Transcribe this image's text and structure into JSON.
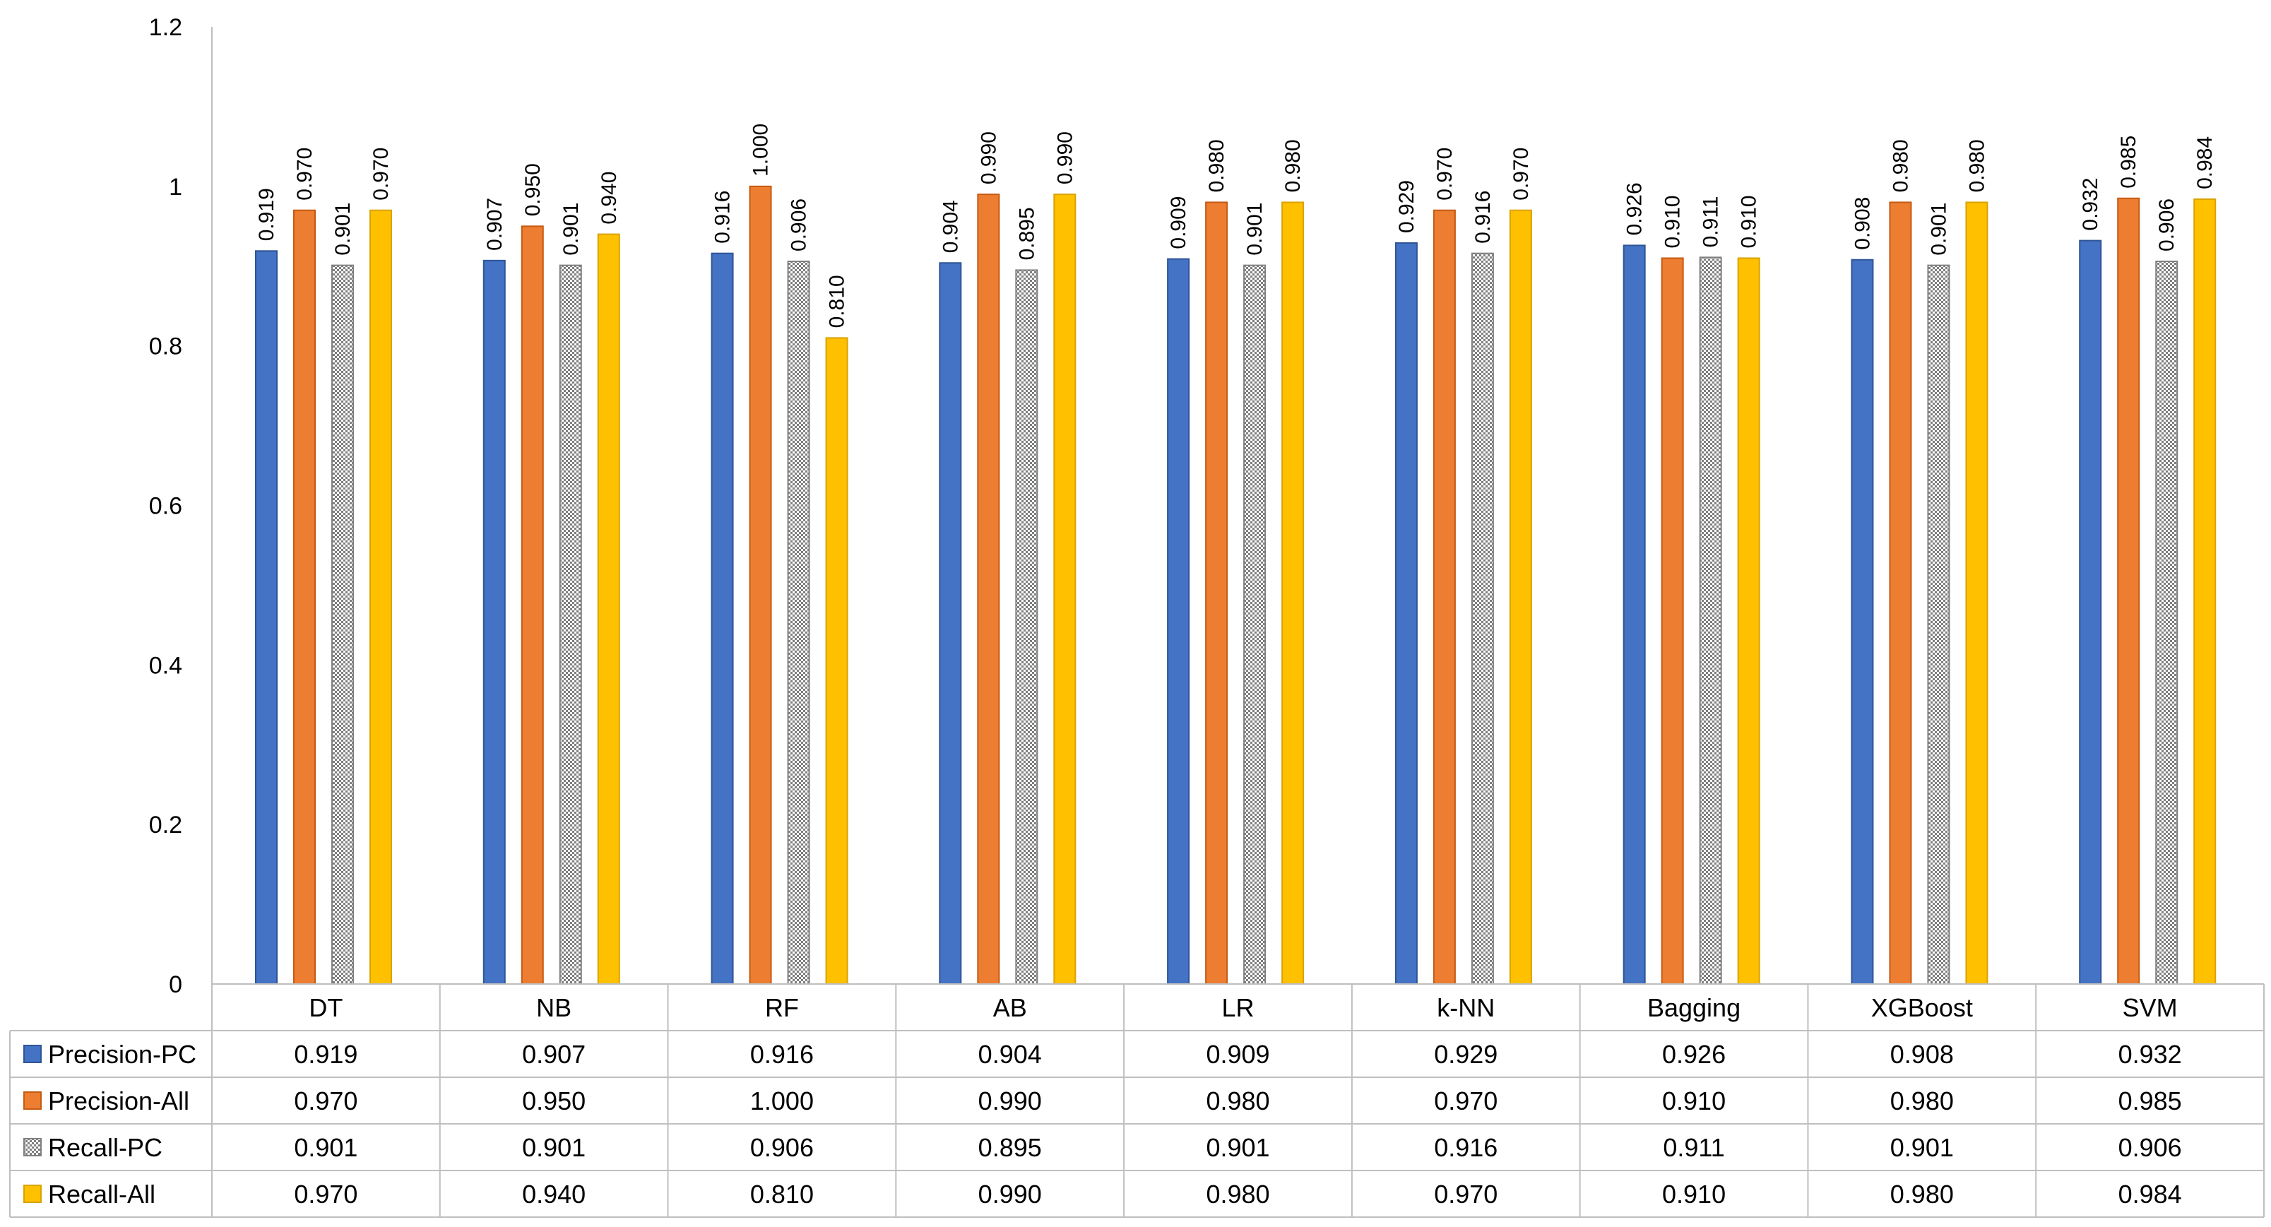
{
  "chart_data": {
    "type": "bar",
    "categories": [
      "DT",
      "NB",
      "RF",
      "AB",
      "LR",
      "k-NN",
      "Bagging",
      "XGBoost",
      "SVM"
    ],
    "series": [
      {
        "name": "Precision-PC",
        "color": "#4472C4",
        "values": [
          0.919,
          0.907,
          0.916,
          0.904,
          0.909,
          0.929,
          0.926,
          0.908,
          0.932
        ],
        "labels": [
          "0.919",
          "0.907",
          "0.916",
          "0.904",
          "0.909",
          "0.929",
          "0.926",
          "0.908",
          "0.932"
        ]
      },
      {
        "name": "Precision-All",
        "color": "#ED7D31",
        "values": [
          0.97,
          0.95,
          1.0,
          0.99,
          0.98,
          0.97,
          0.91,
          0.98,
          0.985
        ],
        "labels": [
          "0.970",
          "0.950",
          "1.000",
          "0.990",
          "0.980",
          "0.970",
          "0.910",
          "0.980",
          "0.985"
        ]
      },
      {
        "name": "Recall-PC",
        "color": "#A5A5A5",
        "pattern": "hatched",
        "values": [
          0.901,
          0.901,
          0.906,
          0.895,
          0.901,
          0.916,
          0.911,
          0.901,
          0.906
        ],
        "labels": [
          "0.901",
          "0.901",
          "0.906",
          "0.895",
          "0.901",
          "0.916",
          "0.911",
          "0.901",
          "0.906"
        ]
      },
      {
        "name": "Recall-All",
        "color": "#FFC000",
        "values": [
          0.97,
          0.94,
          0.81,
          0.99,
          0.98,
          0.97,
          0.91,
          0.98,
          0.984
        ],
        "labels": [
          "0.970",
          "0.940",
          "0.810",
          "0.990",
          "0.980",
          "0.970",
          "0.910",
          "0.980",
          "0.984"
        ]
      }
    ],
    "yticks": [
      "0",
      "0.2",
      "0.4",
      "0.6",
      "0.8",
      "1",
      "1.2"
    ],
    "ylim": [
      0,
      1.2
    ],
    "title": "",
    "xlabel": "",
    "ylabel": "",
    "legend": "data-table",
    "grid": false
  }
}
